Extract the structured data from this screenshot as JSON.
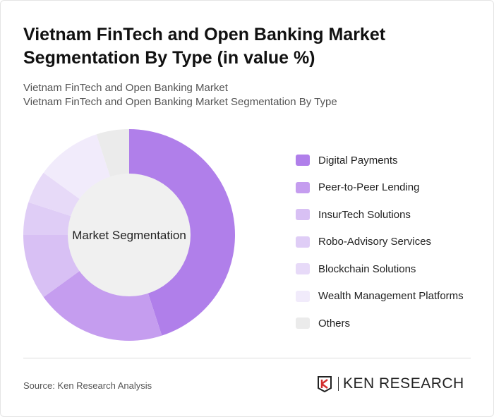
{
  "header": {
    "title": "Vietnam FinTech and Open Banking Market Segmentation By Type (in value %)",
    "subtitle1": "Vietnam FinTech and Open Banking Market",
    "subtitle2": "Vietnam FinTech and Open Banking Market Segmentation By Type"
  },
  "chart_data": {
    "type": "pie",
    "donut": true,
    "center_label": "Market Segmentation",
    "legend_position": "right",
    "categories": [
      "Digital Payments",
      "Peer-to-Peer Lending",
      "InsurTech Solutions",
      "Robo-Advisory Services",
      "Blockchain Solutions",
      "Wealth Management Platforms",
      "Others"
    ],
    "values": [
      45,
      20,
      10,
      5,
      5,
      10,
      5
    ],
    "colors": [
      "#b07fea",
      "#c59def",
      "#d8c0f4",
      "#dfcdf6",
      "#e7daf8",
      "#f1ebfb",
      "#ebebeb"
    ]
  },
  "footer": {
    "source": "Source: Ken Research Analysis",
    "logo": "KEN RESEARCH"
  }
}
